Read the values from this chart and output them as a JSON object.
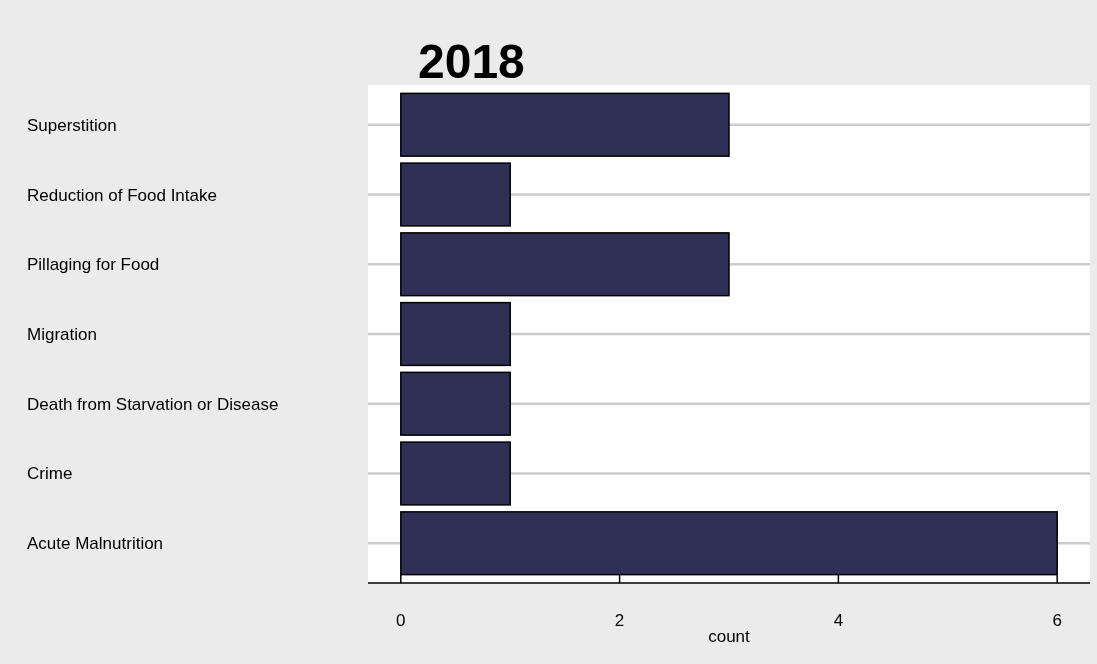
{
  "chart_data": {
    "type": "bar",
    "orientation": "horizontal",
    "title": "2018",
    "xlabel": "count",
    "categories": [
      "Superstition",
      "Reduction of Food Intake",
      "Pillaging for Food",
      "Migration",
      "Death from Starvation or Disease",
      "Crime",
      "Acute Malnutrition"
    ],
    "values": [
      3,
      1,
      3,
      1,
      1,
      1,
      6
    ],
    "color": "#302f55",
    "xlim": [
      -0.3,
      6.3
    ],
    "xticks": [
      0,
      2,
      4,
      6
    ],
    "grid": "y"
  }
}
